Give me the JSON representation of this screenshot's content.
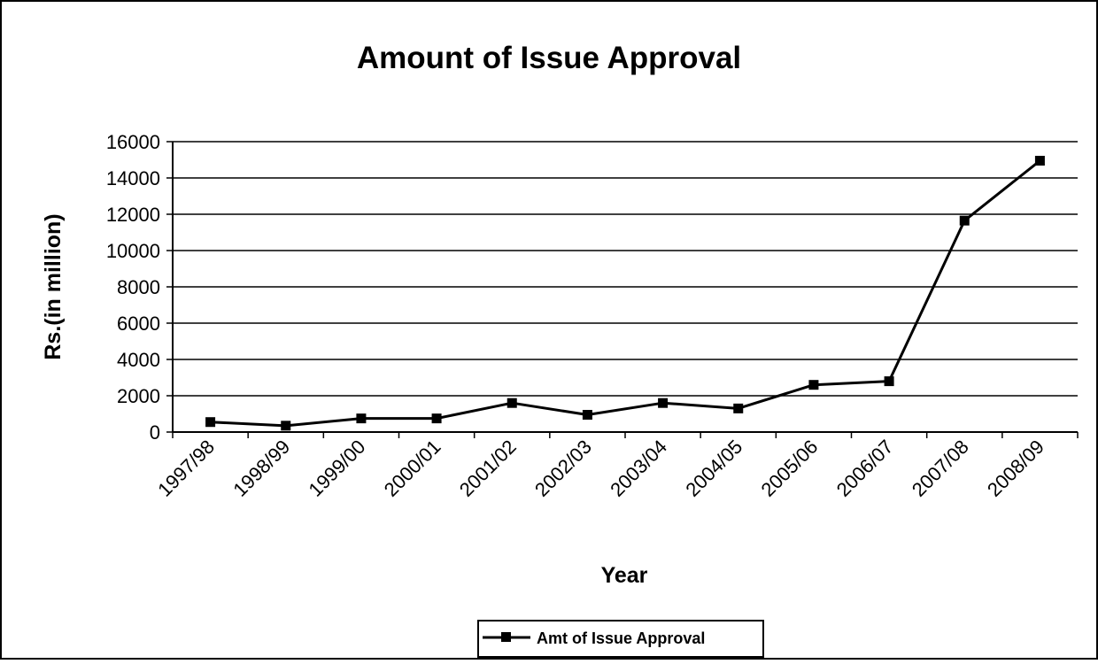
{
  "chart_data": {
    "type": "line",
    "title": "Amount of Issue Approval",
    "xlabel": "Year",
    "ylabel": "Rs.(in million)",
    "categories": [
      "1997/98",
      "1998/99",
      "1999/00",
      "2000/01",
      "2001/02",
      "2002/03",
      "2003/04",
      "2004/05",
      "2005/06",
      "2006/07",
      "2007/08",
      "2008/09"
    ],
    "series": [
      {
        "name": "Amt of Issue Approval",
        "values": [
          550,
          350,
          750,
          750,
          1600,
          950,
          1600,
          1300,
          2600,
          2800,
          11650,
          14950
        ],
        "color": "#000000",
        "marker": "square"
      }
    ],
    "ylim": [
      0,
      16000
    ],
    "yticks": [
      0,
      2000,
      4000,
      6000,
      8000,
      10000,
      12000,
      14000,
      16000
    ],
    "grid": true,
    "legend": "bottom-center"
  }
}
